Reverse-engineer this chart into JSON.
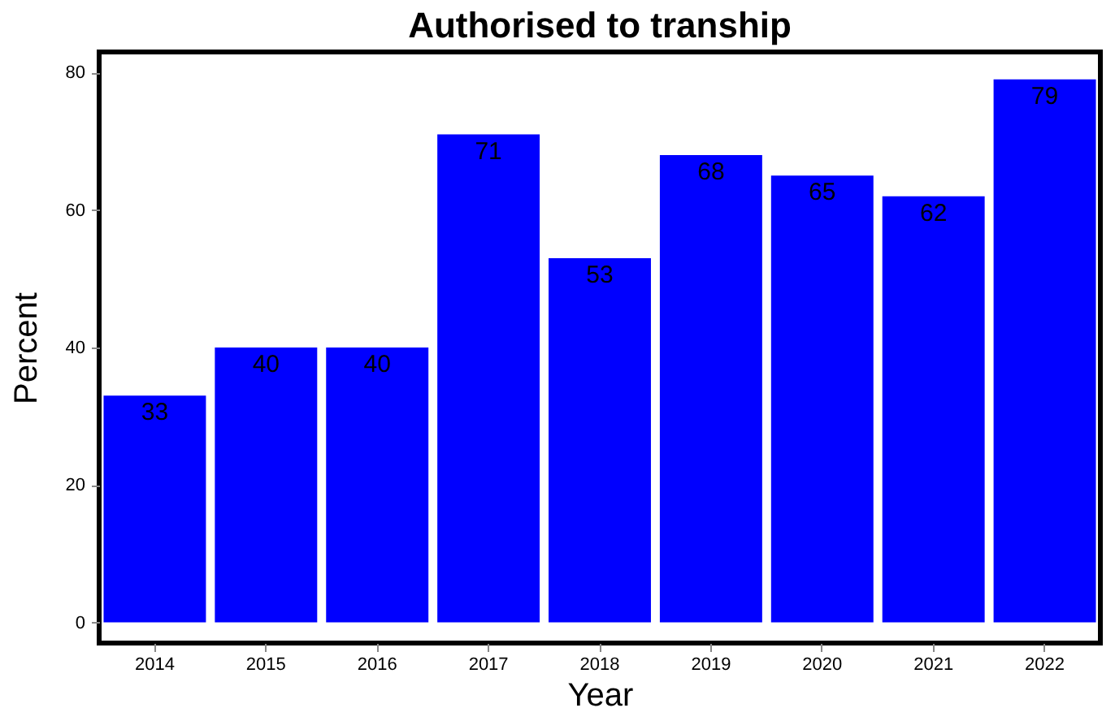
{
  "chart_data": {
    "type": "bar",
    "title": "Authorised to tranship",
    "xlabel": "Year",
    "ylabel": "Percent",
    "categories": [
      "2014",
      "2015",
      "2016",
      "2017",
      "2018",
      "2019",
      "2020",
      "2021",
      "2022"
    ],
    "series": [
      {
        "color": "#0000ff",
        "values": [
          33,
          40,
          40,
          71,
          53,
          68,
          65,
          62,
          79
        ]
      }
    ],
    "ylim": [
      -3,
      83
    ],
    "yticks": [
      0,
      20,
      40,
      60,
      80
    ],
    "grid": false,
    "data_labels": true
  }
}
